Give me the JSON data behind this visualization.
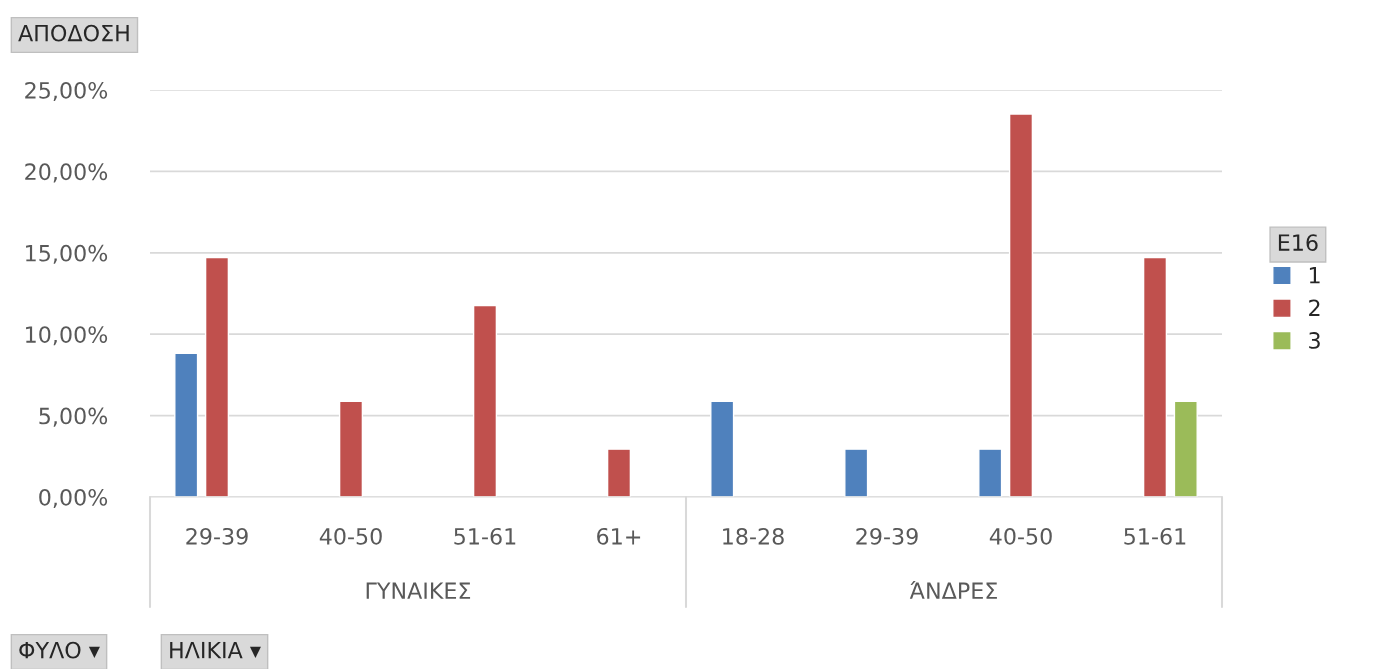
{
  "chart_data": {
    "type": "bar",
    "title": "ΑΠΟΔΟΣΗ",
    "categories": [
      "29-39",
      "40-50",
      "51-61",
      "61+",
      "18-28",
      "29-39",
      "40-50",
      "51-61"
    ],
    "series": [
      {
        "name": "1",
        "color": "#4f81bd",
        "values": [
          8.82,
          null,
          null,
          null,
          5.88,
          2.94,
          2.94,
          null
        ]
      },
      {
        "name": "2",
        "color": "#c0504d",
        "values": [
          14.71,
          5.88,
          11.76,
          2.94,
          null,
          null,
          23.53,
          14.71
        ]
      },
      {
        "name": "3",
        "color": "#9bbb59",
        "values": [
          null,
          null,
          null,
          null,
          null,
          null,
          null,
          5.88
        ]
      }
    ],
    "legend_title": "E16",
    "ylim": [
      0,
      25
    ],
    "yticks": [
      {
        "value": 0,
        "label": "0,00%"
      },
      {
        "value": 5,
        "label": "5,00%"
      },
      {
        "value": 10,
        "label": "10,00%"
      },
      {
        "value": 15,
        "label": "15,00%"
      },
      {
        "value": 20,
        "label": "20,00%"
      },
      {
        "value": 25,
        "label": "25,00%"
      }
    ],
    "annotations": [
      "ΓΥΝΑΙΚΕΣ",
      "ΆΝΔΡΕΣ",
      "ΦΥΛΟ ▾",
      "ΗΛΙΚΙΑ ▾"
    ],
    "grid": "y",
    "legend": "right"
  }
}
